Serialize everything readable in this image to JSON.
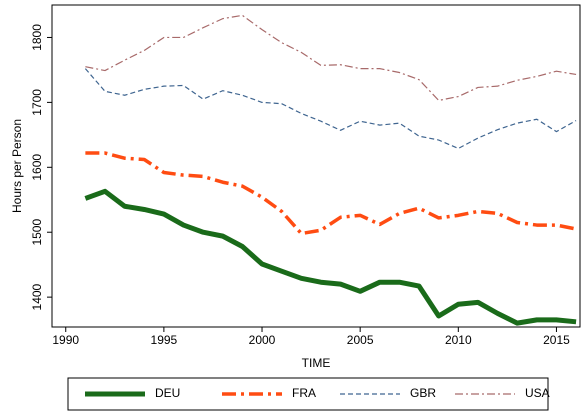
{
  "chart_data": {
    "type": "line",
    "x_label": "TIME",
    "y_label": "Hours per Person",
    "x": [
      1991,
      1992,
      1993,
      1994,
      1995,
      1996,
      1997,
      1998,
      1999,
      2000,
      2001,
      2002,
      2003,
      2004,
      2005,
      2006,
      2007,
      2008,
      2009,
      2010,
      2011,
      2012,
      2013,
      2014,
      2015,
      2016
    ],
    "series": [
      {
        "name": "DEU",
        "color": "#1a6b1a",
        "style": "solid",
        "width": 5,
        "values": [
          1552,
          1563,
          1540,
          1535,
          1528,
          1511,
          1500,
          1494,
          1478,
          1451,
          1440,
          1429,
          1423,
          1420,
          1409,
          1423,
          1423,
          1417,
          1371,
          1389,
          1392,
          1375,
          1360,
          1365,
          1365,
          1362
        ]
      },
      {
        "name": "FRA",
        "color": "#ff4c12",
        "style": "dash-dot",
        "width": 3.5,
        "values": [
          1622,
          1622,
          1614,
          1612,
          1592,
          1588,
          1586,
          1577,
          1571,
          1554,
          1532,
          1498,
          1503,
          1523,
          1526,
          1512,
          1529,
          1537,
          1522,
          1526,
          1532,
          1529,
          1515,
          1511,
          1511,
          1505
        ]
      },
      {
        "name": "GBR",
        "color": "#3f6590",
        "style": "dash",
        "width": 1.2,
        "values": [
          1752,
          1717,
          1711,
          1720,
          1725,
          1726,
          1705,
          1718,
          1711,
          1700,
          1698,
          1683,
          1671,
          1657,
          1671,
          1665,
          1668,
          1648,
          1642,
          1629,
          1645,
          1658,
          1668,
          1674,
          1655,
          1672
        ]
      },
      {
        "name": "USA",
        "color": "#a86a6a",
        "style": "long-dash-dot",
        "width": 1.2,
        "values": [
          1755,
          1749,
          1765,
          1780,
          1800,
          1800,
          1815,
          1829,
          1834,
          1812,
          1792,
          1777,
          1757,
          1758,
          1752,
          1752,
          1746,
          1735,
          1703,
          1709,
          1723,
          1725,
          1734,
          1740,
          1748,
          1743
        ]
      }
    ],
    "xlim": [
      1989.3,
      2016.2
    ],
    "xticks": [
      1990,
      1995,
      2000,
      2005,
      2010,
      2015
    ],
    "ylim": [
      1354,
      1850
    ],
    "yticks": [
      1400,
      1500,
      1600,
      1700,
      1800
    ],
    "legend": "bottom"
  }
}
